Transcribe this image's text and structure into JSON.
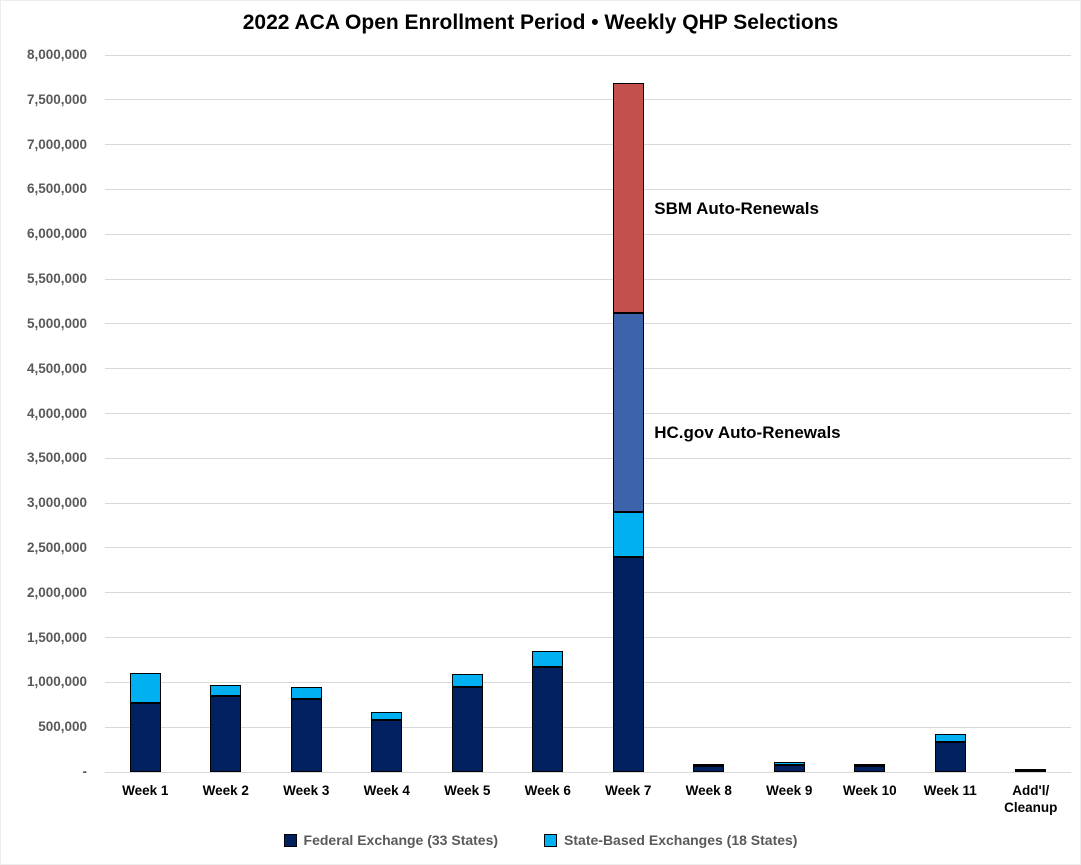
{
  "title": "2022 ACA Open Enrollment Period • Weekly QHP Selections",
  "chart_data": {
    "type": "bar",
    "stacked": true,
    "title": "2022 ACA Open Enrollment Period • Weekly QHP Selections",
    "categories": [
      "Week 1",
      "Week 2",
      "Week 3",
      "Week 4",
      "Week 5",
      "Week 6",
      "Week 7",
      "Week 8",
      "Week 9",
      "Week 10",
      "Week 11",
      "Add'l/\nCleanup"
    ],
    "series": [
      {
        "name": "Federal Exchange (33 States)",
        "color": "#002060",
        "in_legend": true,
        "values": [
          775000,
          850000,
          820000,
          575000,
          950000,
          1170000,
          2400000,
          65000,
          80000,
          70000,
          335000,
          10000
        ]
      },
      {
        "name": "State-Based Exchanges (18 States)",
        "color": "#00B0F0",
        "in_legend": true,
        "values": [
          325000,
          125000,
          130000,
          95000,
          140000,
          180000,
          500000,
          15000,
          35000,
          10000,
          85000,
          20000
        ]
      },
      {
        "name": "HC.gov Auto-Renewals",
        "color": "#3D63AB",
        "in_legend": false,
        "values": [
          0,
          0,
          0,
          0,
          0,
          0,
          2225000,
          0,
          0,
          0,
          0,
          0
        ]
      },
      {
        "name": "SBM Auto-Renewals",
        "color": "#C4504E",
        "in_legend": false,
        "values": [
          0,
          0,
          0,
          0,
          0,
          0,
          2560000,
          0,
          0,
          0,
          0,
          0
        ]
      }
    ],
    "xlabel": "",
    "ylabel": "",
    "ylim": [
      0,
      8000000
    ],
    "ytick_step": 500000,
    "zero_tick_label": "-",
    "grid": true,
    "legend_position": "bottom",
    "annotations": [
      {
        "text": "SBM Auto-Renewals",
        "anchor_category": "Week 7",
        "value_y": 6270000
      },
      {
        "text": "HC.gov Auto-Renewals",
        "anchor_category": "Week 7",
        "value_y": 3770000
      }
    ],
    "colors": {
      "grid": "#d9d9d9",
      "axis_text": "#595959",
      "label_text": "#000000"
    }
  }
}
